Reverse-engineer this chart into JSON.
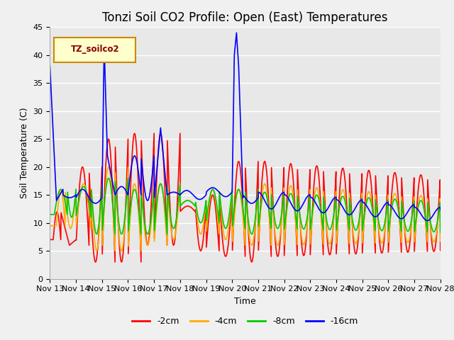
{
  "title": "Tonzi Soil CO2 Profile: Open (East) Temperatures",
  "xlabel": "Time",
  "ylabel": "Soil Temperature (C)",
  "ylim": [
    0,
    45
  ],
  "xlim": [
    0,
    360
  ],
  "background_color": "#f0f0f0",
  "plot_bg_color": "#e8e8e8",
  "grid_color": "#ffffff",
  "legend_label": "TZ_soilco2",
  "series_labels": [
    "-2cm",
    "-4cm",
    "-8cm",
    "-16cm"
  ],
  "series_colors": [
    "#ff0000",
    "#ffaa00",
    "#00cc00",
    "#0000ff"
  ],
  "xtick_labels": [
    "Nov 13",
    "Nov 14",
    "Nov 15",
    "Nov 16",
    "Nov 17",
    "Nov 18",
    "Nov 19",
    "Nov 20",
    "Nov 21",
    "Nov 22",
    "Nov 23",
    "Nov 24",
    "Nov 25",
    "Nov 26",
    "Nov 27",
    "Nov 28"
  ],
  "title_fontsize": 12,
  "axis_fontsize": 9,
  "tick_fontsize": 8,
  "linewidth": 1.2
}
